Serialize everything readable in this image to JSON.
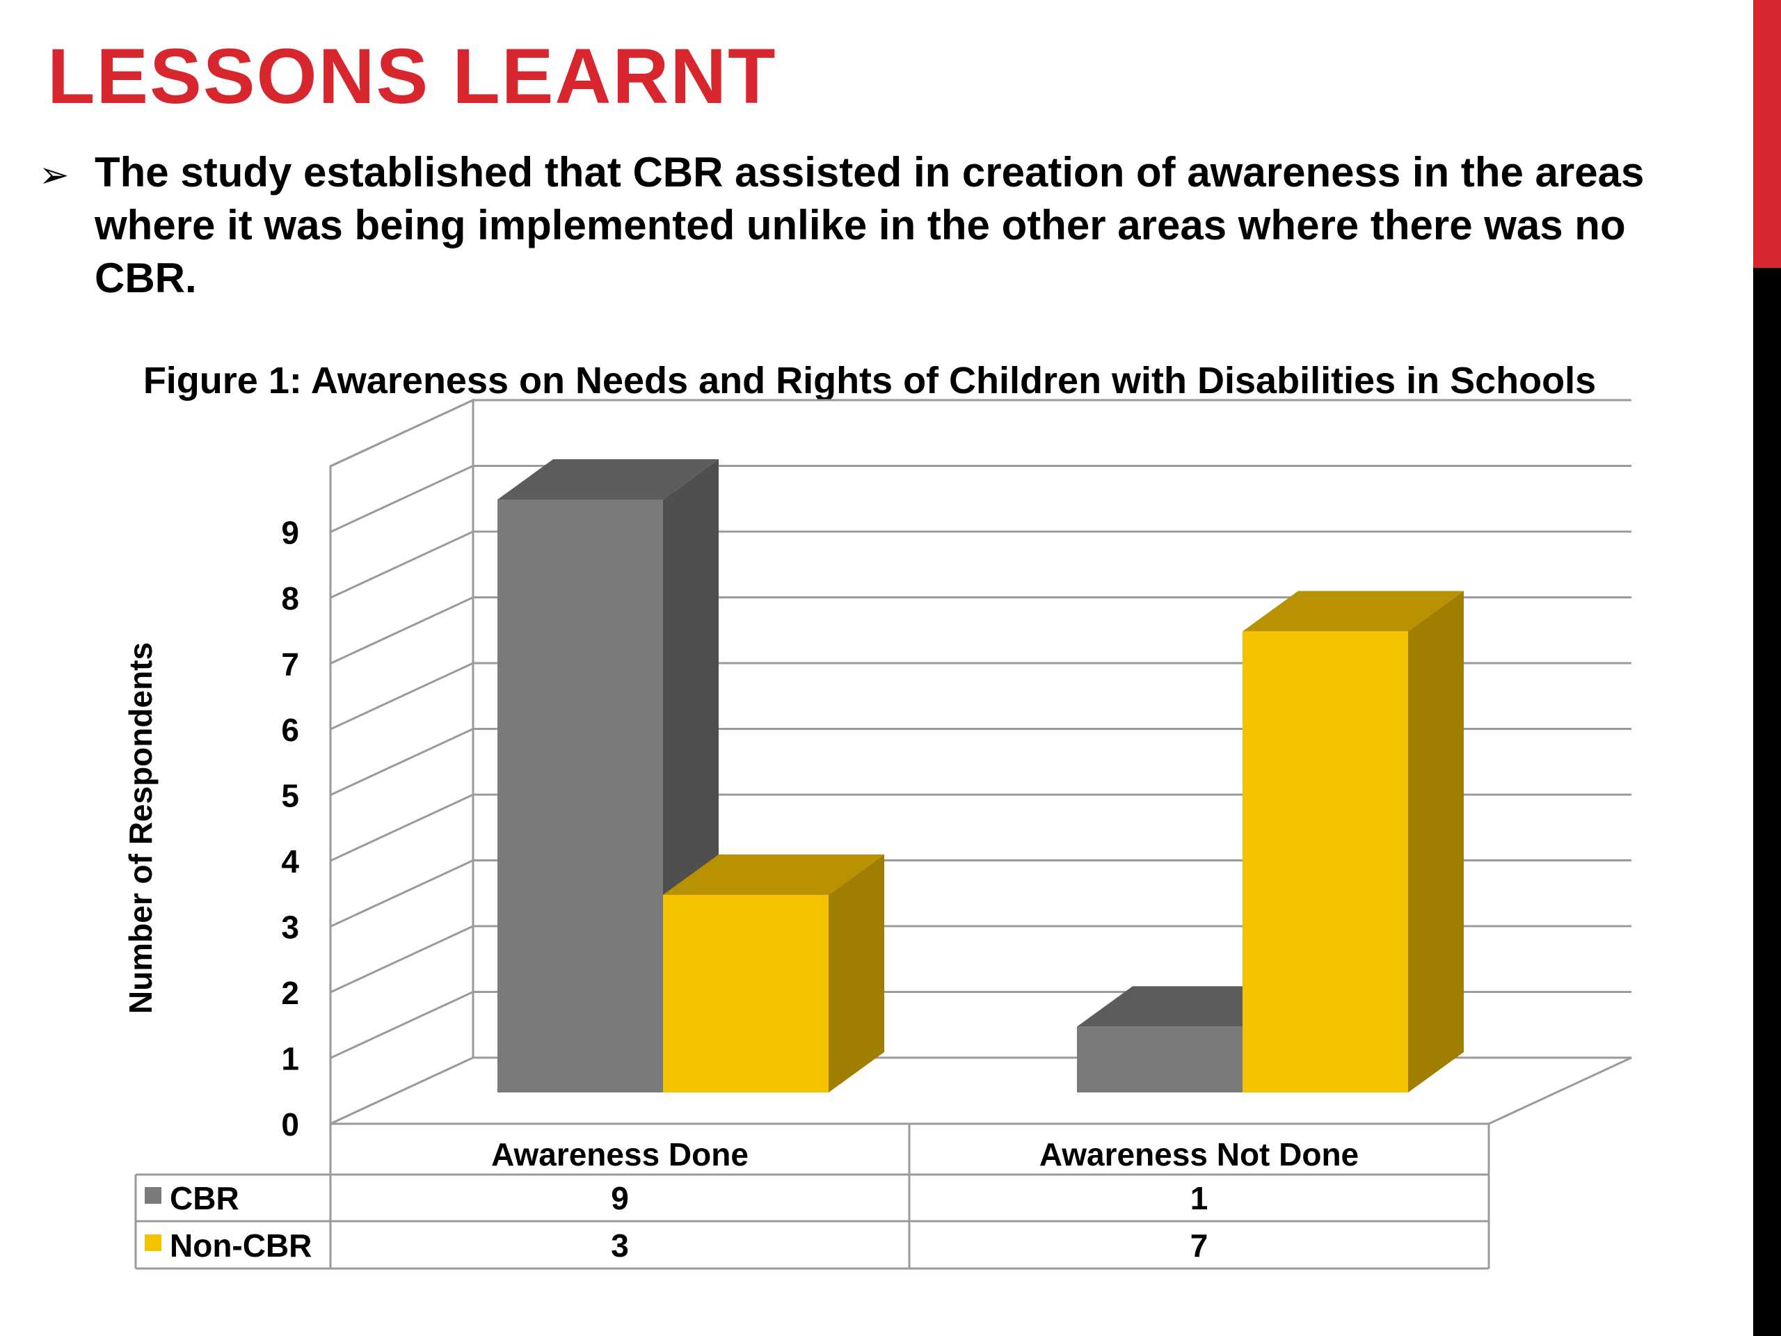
{
  "slide": {
    "title": "LESSONS LEARNT",
    "bullet_icon": "arrow-bullet-icon",
    "bullet_glyph": "➢",
    "bullet_text": "The study established that  CBR assisted in creation of awareness in the areas where it was being implemented unlike in the other areas where there was no CBR."
  },
  "colors": {
    "title": "#d7262e",
    "accent_top": "#d7262e",
    "accent_bottom": "#000000",
    "cbr": "#7a7a7a",
    "non_cbr": "#f5c200"
  },
  "chart_data": {
    "type": "bar",
    "title": "Figure 1: Awareness on Needs and Rights of Children with Disabilities in Schools",
    "xlabel": "",
    "ylabel": "Number of Respondents",
    "ylim": [
      0,
      10
    ],
    "yticks": [
      0,
      1,
      2,
      3,
      4,
      5,
      6,
      7,
      8,
      9
    ],
    "grid": true,
    "three_d": true,
    "legend": "data-table",
    "categories": [
      "Awareness Done",
      "Awareness Not Done"
    ],
    "series": [
      {
        "name": "CBR",
        "values": [
          9,
          1
        ],
        "color": "#7a7a7a"
      },
      {
        "name": "Non-CBR",
        "values": [
          3,
          7
        ],
        "color": "#f5c200"
      }
    ]
  }
}
